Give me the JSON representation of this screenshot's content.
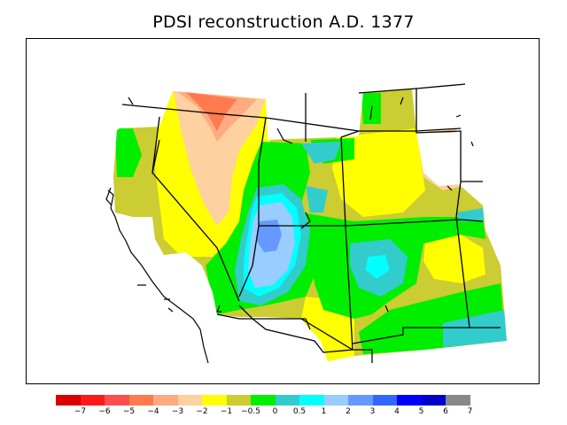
{
  "title": "PDSI reconstruction A.D. 1377",
  "colorbar": {
    "colors": [
      "#d90000",
      "#ff1a1a",
      "#ff4d4d",
      "#ff7a4d",
      "#ffaa80",
      "#ffd0a0",
      "#ffff00",
      "#cccc33",
      "#00ee00",
      "#33cccc",
      "#00ffff",
      "#99ccff",
      "#6699ff",
      "#3366ff",
      "#0000ff",
      "#0000cc",
      "#888888"
    ],
    "labels": [
      "−7",
      "−6",
      "−5",
      "−4",
      "−3",
      "−2",
      "−1",
      "−0.5",
      "0",
      "0.5",
      "1",
      "2",
      "3",
      "4",
      "5",
      "6",
      "7"
    ]
  },
  "map": {
    "region": "Western United States",
    "variable": "PDSI",
    "year": "A.D. 1377"
  }
}
